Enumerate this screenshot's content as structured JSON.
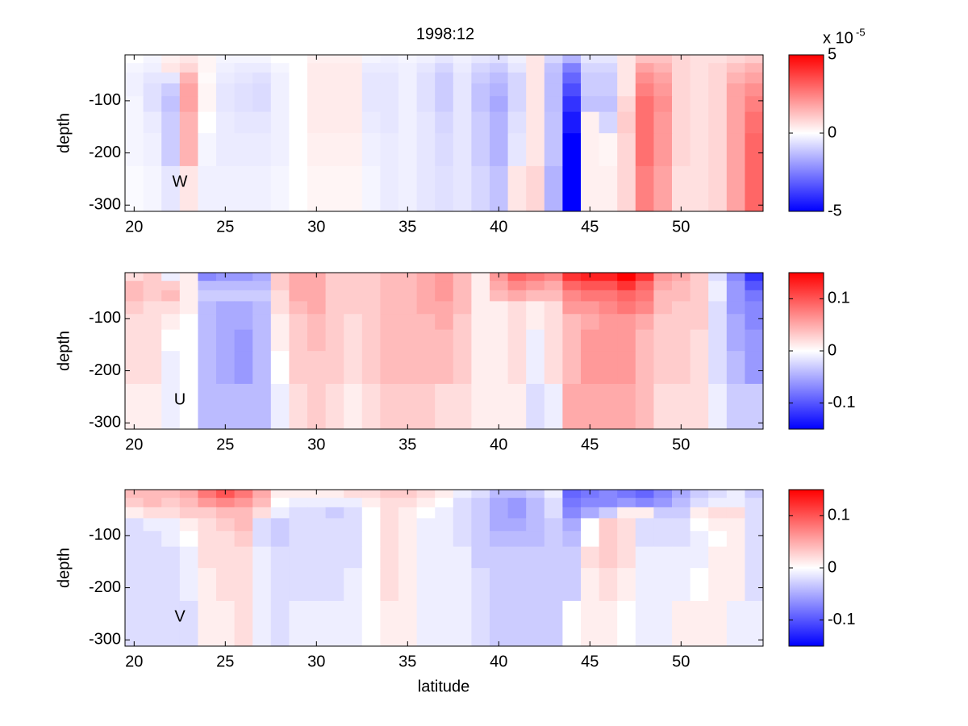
{
  "chart_data": [
    {
      "type": "heatmap",
      "title": "1998:12",
      "label": "W",
      "ylabel": "depth",
      "x": [
        20,
        21,
        22,
        23,
        24,
        25,
        26,
        27,
        28,
        29,
        30,
        31,
        32,
        33,
        34,
        35,
        36,
        37,
        38,
        39,
        40,
        41,
        42,
        43,
        44,
        45,
        46,
        47,
        48,
        49,
        50,
        51,
        52,
        53,
        54
      ],
      "y": [
        -19.5,
        -36,
        -55.5,
        -78,
        -104.5,
        -138,
        -186.5,
        -264
      ],
      "z": [
        [
          0,
          -0.2,
          0.3,
          0.5,
          0.2,
          -0.2,
          -0.2,
          -0.2,
          0,
          0,
          0.3,
          0.3,
          0.3,
          -0.2,
          -0.3,
          -0.2,
          -0.3,
          -0.5,
          -0.3,
          -0.5,
          -0.6,
          -0.3,
          0.5,
          -0.8,
          -1.5,
          -0.5,
          -0.5,
          0.5,
          1.2,
          1.2,
          0.8,
          0.6,
          0.6,
          0.8,
          1
        ],
        [
          -0.2,
          -0.3,
          0.5,
          0.8,
          0.2,
          -0.3,
          -0.4,
          -0.4,
          -0.2,
          0,
          0.4,
          0.4,
          0.4,
          -0.4,
          -0.4,
          -0.3,
          -0.5,
          -0.8,
          -0.4,
          -0.8,
          -1,
          -0.5,
          0.5,
          -1.2,
          -2.5,
          -0.8,
          -0.8,
          0.5,
          1.8,
          1.5,
          0.8,
          0.6,
          0.8,
          1.2,
          1.5
        ],
        [
          -0.3,
          -0.5,
          -0.5,
          1.5,
          0.1,
          -0.4,
          -0.5,
          -0.6,
          -0.3,
          0,
          0.4,
          0.4,
          0.4,
          -0.5,
          -0.5,
          -0.3,
          -0.6,
          -1,
          -0.5,
          -1,
          -1.3,
          -0.8,
          0.5,
          -1.3,
          -3,
          -1,
          -1,
          0.5,
          2.2,
          1.8,
          0.8,
          0.6,
          0.8,
          1.5,
          1.8
        ],
        [
          -0.3,
          -0.6,
          -1,
          1.8,
          0.2,
          -0.5,
          -0.6,
          -0.7,
          -0.3,
          0,
          0.4,
          0.4,
          0.4,
          -0.5,
          -0.5,
          -0.3,
          -0.6,
          -1,
          -0.5,
          -1.2,
          -1.5,
          -0.8,
          0.5,
          -1.3,
          -3.5,
          -1,
          -1,
          0.5,
          2.5,
          2,
          0.8,
          0.6,
          0.8,
          1.8,
          2.2
        ],
        [
          -0.2,
          -0.6,
          -1.2,
          1.8,
          0.2,
          -0.5,
          -0.6,
          -0.7,
          -0.3,
          0,
          0.4,
          0.4,
          0.4,
          -0.5,
          -0.5,
          -0.3,
          -0.6,
          -1,
          -0.5,
          -1.2,
          -1.7,
          -0.8,
          0.5,
          -1.3,
          -4,
          -1.2,
          -1.2,
          0.8,
          2.8,
          2.2,
          0.8,
          0.6,
          0.8,
          1.8,
          2.5
        ],
        [
          -0.2,
          -0.4,
          -1,
          1.5,
          0,
          -0.4,
          -0.5,
          -0.5,
          -0.3,
          0,
          0.4,
          0.4,
          0.4,
          -0.4,
          -0.5,
          -0.3,
          -0.5,
          -0.8,
          -0.5,
          -1,
          -1.5,
          -0.6,
          0.5,
          -1.2,
          -4.5,
          0.3,
          -0.8,
          1,
          2.8,
          2,
          0.8,
          0.6,
          0.8,
          1.8,
          2.8
        ],
        [
          -0.2,
          -0.3,
          -1,
          1.5,
          -0.2,
          -0.4,
          -0.4,
          -0.4,
          -0.3,
          0,
          0.3,
          0.3,
          0.3,
          -0.3,
          -0.4,
          -0.3,
          -0.5,
          -0.7,
          -0.5,
          -1,
          -1.5,
          -0.5,
          0.5,
          -1.2,
          -5,
          0.3,
          0.2,
          0.8,
          2.8,
          2,
          0.8,
          0.6,
          0.8,
          1.8,
          3
        ],
        [
          -0.1,
          -0.2,
          -0.5,
          0.5,
          -0.3,
          -0.3,
          -0.3,
          -0.3,
          -0.2,
          0,
          0.2,
          0.2,
          0.2,
          -0.2,
          -0.4,
          -0.3,
          -0.5,
          -0.6,
          -0.5,
          -0.8,
          -1.2,
          0.5,
          0.8,
          -1.5,
          -5,
          0.3,
          0.3,
          0.8,
          2.5,
          1.8,
          0.6,
          0.6,
          0.8,
          1.8,
          3
        ]
      ],
      "xlim": [
        19.5,
        54.5
      ],
      "ylim": [
        -312,
        -12
      ],
      "xticks": [
        20,
        25,
        30,
        35,
        40,
        45,
        50
      ],
      "yticks": [
        -300,
        -200,
        -100
      ],
      "clim": [
        -5,
        5
      ],
      "cticks": [
        -5,
        0,
        5
      ],
      "cmap": [
        "#0000ff",
        "#ffffff",
        "#ff0000"
      ],
      "colorbar_label": "x 10",
      "colorbar_exponent": "-5"
    },
    {
      "type": "heatmap",
      "label": "U",
      "ylabel": "depth",
      "x": [
        20,
        21,
        22,
        23,
        24,
        25,
        26,
        27,
        28,
        29,
        30,
        31,
        32,
        33,
        34,
        35,
        36,
        37,
        38,
        39,
        40,
        41,
        42,
        43,
        44,
        45,
        46,
        47,
        48,
        49,
        50,
        51,
        52,
        53,
        54
      ],
      "y": [
        -19.5,
        -36,
        -55.5,
        -78,
        -104.5,
        -138,
        -186.5,
        -264
      ],
      "z": [
        [
          0.02,
          0.03,
          -0.01,
          0.01,
          -0.07,
          -0.06,
          -0.06,
          -0.05,
          0.03,
          0.05,
          0.05,
          0.03,
          0.03,
          0.03,
          0.04,
          0.04,
          0.05,
          0.06,
          0.04,
          0.01,
          0.06,
          0.09,
          0.08,
          0.07,
          0.12,
          0.13,
          0.13,
          0.15,
          0.12,
          0.06,
          0.05,
          0.03,
          -0.02,
          -0.07,
          -0.12
        ],
        [
          0.04,
          0.03,
          0.03,
          0.01,
          -0.04,
          -0.04,
          -0.04,
          -0.04,
          0.03,
          0.05,
          0.05,
          0.03,
          0.03,
          0.03,
          0.04,
          0.04,
          0.05,
          0.06,
          0.04,
          0.01,
          0.05,
          0.07,
          0.06,
          0.05,
          0.09,
          0.1,
          0.1,
          0.12,
          0.09,
          0.05,
          0.04,
          0.03,
          -0.01,
          -0.06,
          -0.1
        ],
        [
          0.04,
          0.03,
          0.04,
          0.01,
          -0.03,
          -0.03,
          -0.03,
          -0.03,
          0.02,
          0.05,
          0.05,
          0.03,
          0.03,
          0.03,
          0.04,
          0.04,
          0.05,
          0.06,
          0.04,
          0.01,
          0.04,
          0.05,
          0.04,
          0.04,
          0.07,
          0.08,
          0.08,
          0.09,
          0.08,
          0.04,
          0.04,
          0.03,
          -0.01,
          -0.06,
          -0.08
        ],
        [
          0.03,
          0.02,
          0.02,
          0.01,
          -0.04,
          -0.05,
          -0.05,
          -0.04,
          0.02,
          0.04,
          0.05,
          0.03,
          0.03,
          0.03,
          0.04,
          0.04,
          0.05,
          0.05,
          0.04,
          0.01,
          0.01,
          0.02,
          0.01,
          0.02,
          0.06,
          0.06,
          0.07,
          0.08,
          0.07,
          0.04,
          0.03,
          0.03,
          -0.02,
          -0.06,
          -0.07
        ],
        [
          0.02,
          0.02,
          0.01,
          0,
          -0.04,
          -0.05,
          -0.05,
          -0.04,
          0.01,
          0.03,
          0.04,
          0.03,
          0.02,
          0.03,
          0.04,
          0.04,
          0.04,
          0.05,
          0.03,
          0.01,
          0.01,
          0.02,
          0.01,
          0.02,
          0.04,
          0.05,
          0.06,
          0.06,
          0.05,
          0.03,
          0.03,
          0.03,
          -0.02,
          -0.05,
          -0.07
        ],
        [
          0.02,
          0.02,
          0,
          0,
          -0.04,
          -0.05,
          -0.06,
          -0.04,
          0.01,
          0.03,
          0.04,
          0.03,
          0.02,
          0.03,
          0.04,
          0.04,
          0.04,
          0.04,
          0.03,
          0.01,
          0.01,
          0.02,
          -0.01,
          0.02,
          0.04,
          0.06,
          0.06,
          0.06,
          0.04,
          0.03,
          0.03,
          0.02,
          -0.02,
          -0.05,
          -0.06
        ],
        [
          0.02,
          0.02,
          -0.01,
          0,
          -0.04,
          -0.05,
          -0.06,
          -0.04,
          0,
          0.03,
          0.03,
          0.03,
          0.02,
          0.03,
          0.04,
          0.04,
          0.04,
          0.04,
          0.03,
          0.01,
          0.01,
          0.02,
          -0.01,
          0.02,
          0.04,
          0.06,
          0.06,
          0.06,
          0.04,
          0.03,
          0.03,
          0.02,
          -0.02,
          -0.04,
          -0.06
        ],
        [
          0.01,
          0.01,
          -0.01,
          0,
          -0.04,
          -0.04,
          -0.04,
          -0.04,
          -0.01,
          0.02,
          0.03,
          0.02,
          0.01,
          0.02,
          0.03,
          0.03,
          0.03,
          0.02,
          0.02,
          0.01,
          0.01,
          0.01,
          -0.02,
          -0.01,
          0.05,
          0.05,
          0.05,
          0.05,
          0.04,
          0.02,
          0.02,
          0.02,
          -0.01,
          -0.03,
          -0.03
        ]
      ],
      "xlim": [
        19.5,
        54.5
      ],
      "ylim": [
        -312,
        -12
      ],
      "xticks": [
        20,
        25,
        30,
        35,
        40,
        45,
        50
      ],
      "yticks": [
        -300,
        -200,
        -100
      ],
      "clim": [
        -0.15,
        0.15
      ],
      "cticks": [
        -0.1,
        0,
        0.1
      ],
      "cmap": [
        "#0000ff",
        "#ffffff",
        "#ff0000"
      ]
    },
    {
      "type": "heatmap",
      "label": "V",
      "ylabel": "depth",
      "xlabel": "latitude",
      "x": [
        20,
        21,
        22,
        23,
        24,
        25,
        26,
        27,
        28,
        29,
        30,
        31,
        32,
        33,
        34,
        35,
        36,
        37,
        38,
        39,
        40,
        41,
        42,
        43,
        44,
        45,
        46,
        47,
        48,
        49,
        50,
        51,
        52,
        53,
        54
      ],
      "y": [
        -19.5,
        -36,
        -55.5,
        -78,
        -104.5,
        -138,
        -186.5,
        -264
      ],
      "z": [
        [
          0.04,
          0.04,
          0.04,
          0.05,
          0.08,
          0.1,
          0.08,
          0.05,
          0.01,
          0.01,
          0.01,
          0.01,
          0.02,
          0.02,
          0.03,
          0.03,
          0.02,
          0.01,
          -0.01,
          -0.02,
          -0.04,
          -0.04,
          -0.03,
          -0.01,
          -0.09,
          -0.08,
          -0.07,
          -0.08,
          -0.09,
          -0.07,
          -0.05,
          -0.03,
          -0.02,
          -0.01,
          -0.03
        ],
        [
          0.03,
          0.04,
          0.03,
          0.04,
          0.06,
          0.07,
          0.06,
          0.04,
          0,
          -0.01,
          -0.01,
          -0.01,
          -0.01,
          0.01,
          0.02,
          0.02,
          0.01,
          0,
          -0.02,
          -0.03,
          -0.05,
          -0.06,
          -0.04,
          -0.02,
          -0.08,
          -0.07,
          -0.07,
          -0.06,
          -0.07,
          -0.06,
          -0.04,
          -0.02,
          -0.01,
          -0.01,
          -0.02
        ],
        [
          0.01,
          0.02,
          0.02,
          0.03,
          0.03,
          0.04,
          0.04,
          0.02,
          -0.01,
          -0.02,
          -0.02,
          -0.03,
          -0.02,
          0,
          0.02,
          0.01,
          0,
          -0.01,
          -0.02,
          -0.03,
          -0.05,
          -0.06,
          -0.04,
          -0.02,
          -0.07,
          -0.05,
          -0.03,
          0.01,
          0.01,
          -0.03,
          -0.03,
          0.01,
          0.02,
          0.02,
          -0.02
        ],
        [
          -0.02,
          -0.01,
          -0.01,
          0.01,
          0.02,
          0.03,
          0.04,
          -0.02,
          -0.03,
          -0.02,
          -0.02,
          -0.02,
          -0.02,
          0,
          0.02,
          0.01,
          -0.01,
          -0.01,
          -0.02,
          -0.03,
          -0.05,
          -0.05,
          -0.04,
          -0.03,
          -0.05,
          0,
          0.03,
          0.02,
          -0.02,
          -0.02,
          -0.02,
          0,
          0.01,
          0.01,
          -0.02
        ],
        [
          -0.02,
          -0.02,
          -0.01,
          0,
          0.02,
          0.02,
          0.03,
          -0.02,
          -0.03,
          -0.02,
          -0.02,
          -0.02,
          -0.02,
          0,
          0.02,
          0.01,
          -0.01,
          -0.01,
          -0.02,
          -0.03,
          -0.04,
          -0.04,
          -0.04,
          -0.03,
          -0.04,
          0,
          0.03,
          0.02,
          -0.02,
          -0.02,
          -0.02,
          -0.01,
          0,
          0.01,
          -0.02
        ],
        [
          -0.02,
          -0.02,
          -0.02,
          -0.01,
          0.02,
          0.02,
          0.02,
          -0.01,
          -0.02,
          -0.02,
          -0.02,
          -0.02,
          -0.02,
          0,
          0.02,
          0.01,
          -0.01,
          -0.01,
          -0.01,
          -0.03,
          -0.03,
          -0.03,
          -0.03,
          -0.03,
          -0.03,
          0.02,
          0.03,
          0.02,
          -0.01,
          -0.01,
          -0.01,
          -0.01,
          0.01,
          0.01,
          -0.02
        ],
        [
          -0.02,
          -0.02,
          -0.02,
          -0.01,
          0.01,
          0.02,
          0.02,
          -0.01,
          -0.02,
          -0.02,
          -0.02,
          -0.02,
          -0.01,
          0,
          0.02,
          0.01,
          -0.01,
          -0.01,
          -0.01,
          -0.02,
          -0.03,
          -0.03,
          -0.03,
          -0.03,
          -0.03,
          0.01,
          0.02,
          0.01,
          -0.01,
          -0.01,
          -0.01,
          0,
          0.01,
          0.01,
          -0.02
        ],
        [
          -0.02,
          -0.02,
          -0.02,
          -0.02,
          0.01,
          0.01,
          0.02,
          -0.01,
          -0.02,
          -0.01,
          -0.01,
          -0.01,
          -0.01,
          0,
          0.01,
          0.01,
          -0.01,
          -0.01,
          -0.01,
          -0.02,
          -0.03,
          -0.03,
          -0.03,
          -0.03,
          0,
          0.01,
          0.01,
          0,
          -0.01,
          -0.01,
          0.01,
          0.01,
          0.01,
          -0.01,
          -0.01
        ]
      ],
      "xlim": [
        19.5,
        54.5
      ],
      "ylim": [
        -312,
        -12
      ],
      "xticks": [
        20,
        25,
        30,
        35,
        40,
        45,
        50
      ],
      "yticks": [
        -300,
        -200,
        -100
      ],
      "clim": [
        -0.15,
        0.15
      ],
      "cticks": [
        -0.1,
        0,
        0.1
      ],
      "cmap": [
        "#0000ff",
        "#ffffff",
        "#ff0000"
      ]
    }
  ]
}
